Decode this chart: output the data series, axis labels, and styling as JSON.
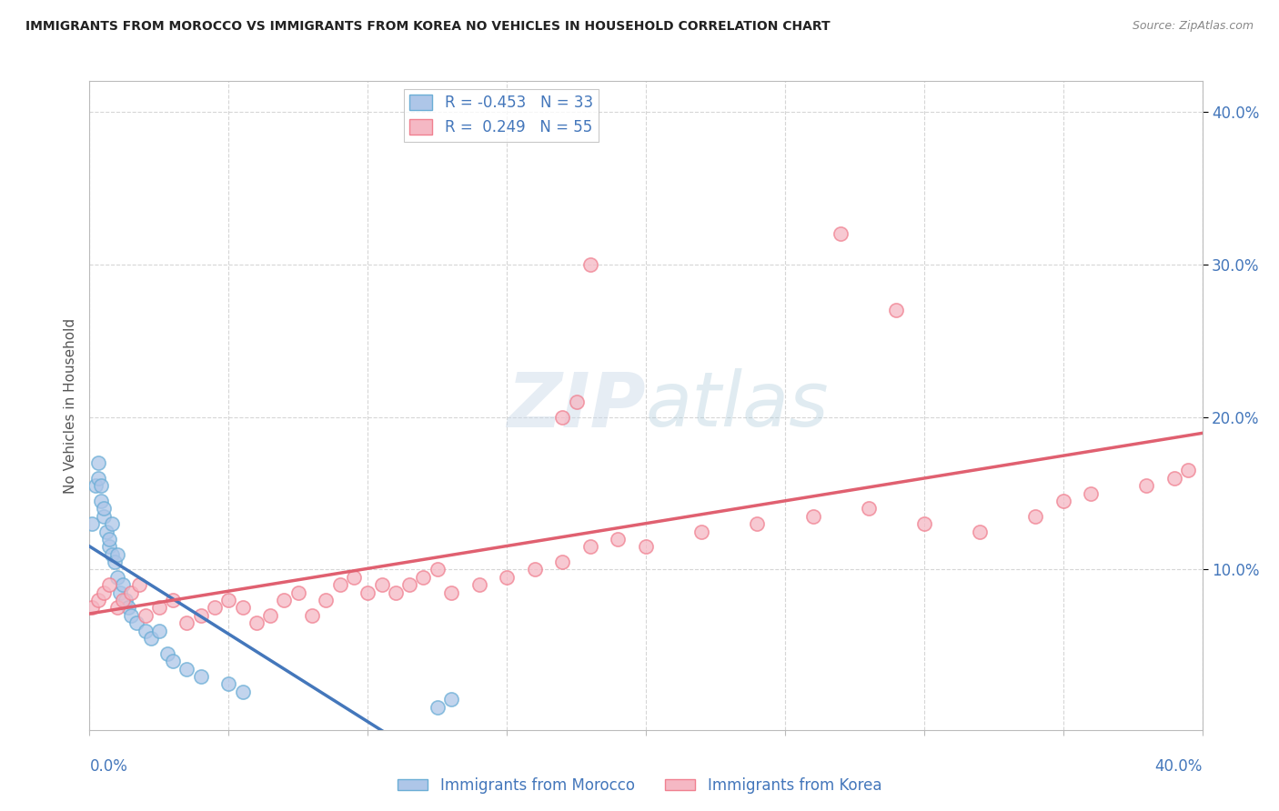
{
  "title": "IMMIGRANTS FROM MOROCCO VS IMMIGRANTS FROM KOREA NO VEHICLES IN HOUSEHOLD CORRELATION CHART",
  "source": "Source: ZipAtlas.com",
  "ylabel": "No Vehicles in Household",
  "xlim": [
    0.0,
    0.4
  ],
  "ylim": [
    -0.005,
    0.42
  ],
  "legend_R_morocco": "-0.453",
  "legend_N_morocco": 33,
  "legend_R_korea": "0.249",
  "legend_N_korea": 55,
  "morocco_color": "#aec6e8",
  "korea_color": "#f5b8c4",
  "morocco_edge_color": "#6baed6",
  "korea_edge_color": "#f08090",
  "morocco_line_color": "#4477bb",
  "korea_line_color": "#e06070",
  "watermark_text": "ZIPatlas",
  "background_color": "#ffffff",
  "grid_color": "#cccccc",
  "title_color": "#222222",
  "axis_label_color": "#555555",
  "tick_color": "#4477bb",
  "morocco_x": [
    0.001,
    0.002,
    0.003,
    0.003,
    0.004,
    0.004,
    0.005,
    0.005,
    0.006,
    0.007,
    0.007,
    0.008,
    0.008,
    0.009,
    0.01,
    0.01,
    0.011,
    0.012,
    0.013,
    0.014,
    0.015,
    0.017,
    0.02,
    0.022,
    0.025,
    0.028,
    0.03,
    0.035,
    0.04,
    0.05,
    0.055,
    0.125,
    0.13
  ],
  "morocco_y": [
    0.13,
    0.155,
    0.16,
    0.17,
    0.145,
    0.155,
    0.135,
    0.14,
    0.125,
    0.115,
    0.12,
    0.11,
    0.13,
    0.105,
    0.095,
    0.11,
    0.085,
    0.09,
    0.08,
    0.075,
    0.07,
    0.065,
    0.06,
    0.055,
    0.06,
    0.045,
    0.04,
    0.035,
    0.03,
    0.025,
    0.02,
    0.01,
    0.015
  ],
  "korea_x": [
    0.001,
    0.003,
    0.005,
    0.007,
    0.01,
    0.012,
    0.015,
    0.018,
    0.02,
    0.025,
    0.03,
    0.035,
    0.04,
    0.045,
    0.05,
    0.055,
    0.06,
    0.065,
    0.07,
    0.075,
    0.08,
    0.085,
    0.09,
    0.095,
    0.1,
    0.105,
    0.11,
    0.115,
    0.12,
    0.125,
    0.13,
    0.14,
    0.15,
    0.16,
    0.17,
    0.18,
    0.19,
    0.2,
    0.22,
    0.24,
    0.26,
    0.28,
    0.3,
    0.32,
    0.34,
    0.35,
    0.36,
    0.38,
    0.39,
    0.395,
    0.17,
    0.175,
    0.18,
    0.27,
    0.29
  ],
  "korea_y": [
    0.075,
    0.08,
    0.085,
    0.09,
    0.075,
    0.08,
    0.085,
    0.09,
    0.07,
    0.075,
    0.08,
    0.065,
    0.07,
    0.075,
    0.08,
    0.075,
    0.065,
    0.07,
    0.08,
    0.085,
    0.07,
    0.08,
    0.09,
    0.095,
    0.085,
    0.09,
    0.085,
    0.09,
    0.095,
    0.1,
    0.085,
    0.09,
    0.095,
    0.1,
    0.105,
    0.115,
    0.12,
    0.115,
    0.125,
    0.13,
    0.135,
    0.14,
    0.13,
    0.125,
    0.135,
    0.145,
    0.15,
    0.155,
    0.16,
    0.165,
    0.2,
    0.21,
    0.3,
    0.32,
    0.27
  ]
}
